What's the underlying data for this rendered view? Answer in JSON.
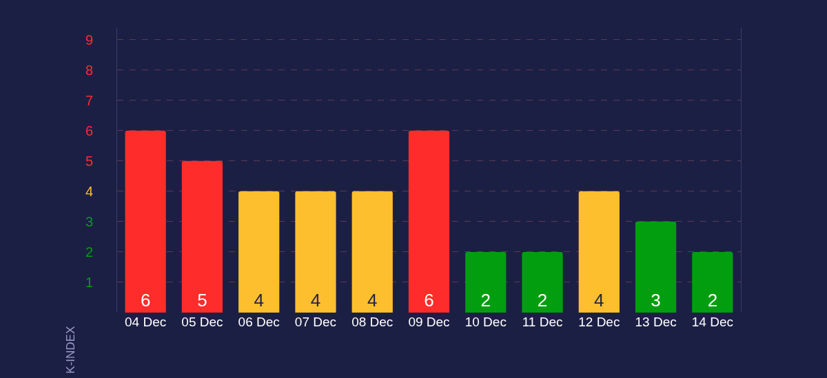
{
  "chart_data": {
    "type": "bar",
    "ylabel": "K-INDEX",
    "categories": [
      "04 Dec",
      "05 Dec",
      "06 Dec",
      "07 Dec",
      "08 Dec",
      "09 Dec",
      "10 Dec",
      "11 Dec",
      "12 Dec",
      "13 Dec",
      "14 Dec"
    ],
    "values": [
      6,
      5,
      4,
      4,
      4,
      6,
      2,
      2,
      4,
      3,
      2
    ],
    "colors": [
      "#ff2c2c",
      "#ff2c2c",
      "#fdbf2d",
      "#fdbf2d",
      "#fdbf2d",
      "#ff2c2c",
      "#029e10",
      "#029e10",
      "#fdbf2d",
      "#029e10",
      "#029e10"
    ],
    "data_labels": true,
    "ylim": [
      0,
      9.4
    ],
    "yticks": [
      1,
      2,
      3,
      4,
      5,
      6,
      7,
      8,
      9
    ],
    "grid": "y"
  }
}
